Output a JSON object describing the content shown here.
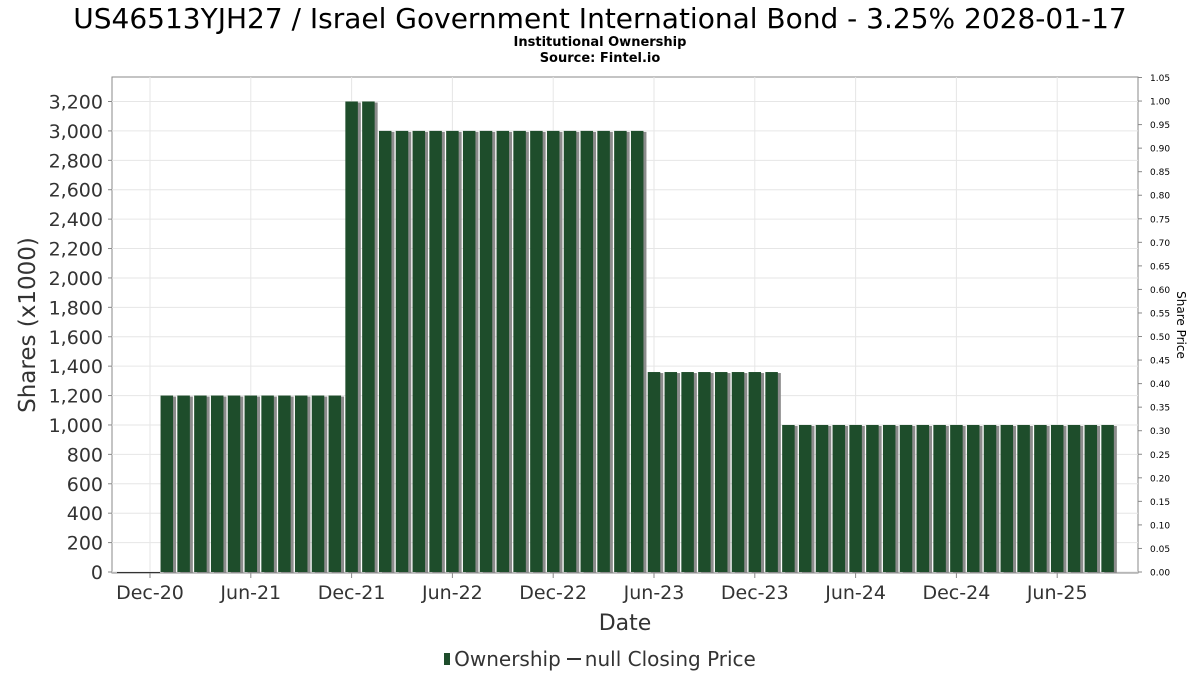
{
  "chart_data": {
    "type": "bar",
    "title": "US46513YJH27 / Israel Government International Bond - 3.25% 2028-01-17",
    "subtitle_lines": [
      "Institutional Ownership",
      "Source: Fintel.io"
    ],
    "xlabel": "Date",
    "ylabel": "Shares (x1000)",
    "y2label": "Share Price",
    "ylim": [
      0,
      3200
    ],
    "y_ticks": [
      0,
      200,
      400,
      600,
      800,
      1000,
      1200,
      1400,
      1600,
      1800,
      2000,
      2200,
      2400,
      2600,
      2800,
      3000,
      3200
    ],
    "y2lim": [
      0,
      1.05
    ],
    "y2_ticks": [
      "0.00",
      "0.05",
      "0.10",
      "0.15",
      "0.20",
      "0.25",
      "0.30",
      "0.35",
      "0.40",
      "0.45",
      "0.50",
      "0.55",
      "0.60",
      "0.65",
      "0.70",
      "0.75",
      "0.80",
      "0.85",
      "0.90",
      "0.95",
      "1.00",
      "1.05"
    ],
    "x_ticks": [
      "Dec-20",
      "Jun-21",
      "Dec-21",
      "Jun-22",
      "Dec-22",
      "Jun-23",
      "Dec-23",
      "Jun-24",
      "Dec-24",
      "Jun-25"
    ],
    "grid": true,
    "bar_color": "#1e4d2b",
    "shadow_color": "#8c8c8c",
    "series": [
      {
        "name": "Ownership",
        "points": [
          {
            "date": "2021-01",
            "value": 1200
          },
          {
            "date": "2021-02",
            "value": 1200
          },
          {
            "date": "2021-03",
            "value": 1200
          },
          {
            "date": "2021-04",
            "value": 1200
          },
          {
            "date": "2021-05",
            "value": 1200
          },
          {
            "date": "2021-06",
            "value": 1200
          },
          {
            "date": "2021-07",
            "value": 1200
          },
          {
            "date": "2021-08",
            "value": 1200
          },
          {
            "date": "2021-09",
            "value": 1200
          },
          {
            "date": "2021-10",
            "value": 1200
          },
          {
            "date": "2021-11",
            "value": 1200
          },
          {
            "date": "2021-12",
            "value": 3200
          },
          {
            "date": "2022-01",
            "value": 3200
          },
          {
            "date": "2022-02",
            "value": 3000
          },
          {
            "date": "2022-03",
            "value": 3000
          },
          {
            "date": "2022-04",
            "value": 3000
          },
          {
            "date": "2022-05",
            "value": 3000
          },
          {
            "date": "2022-06",
            "value": 3000
          },
          {
            "date": "2022-07",
            "value": 3000
          },
          {
            "date": "2022-08",
            "value": 3000
          },
          {
            "date": "2022-09",
            "value": 3000
          },
          {
            "date": "2022-10",
            "value": 3000
          },
          {
            "date": "2022-11",
            "value": 3000
          },
          {
            "date": "2022-12",
            "value": 3000
          },
          {
            "date": "2023-01",
            "value": 3000
          },
          {
            "date": "2023-02",
            "value": 3000
          },
          {
            "date": "2023-03",
            "value": 3000
          },
          {
            "date": "2023-04",
            "value": 3000
          },
          {
            "date": "2023-05",
            "value": 3000
          },
          {
            "date": "2023-06",
            "value": 1360
          },
          {
            "date": "2023-07",
            "value": 1360
          },
          {
            "date": "2023-08",
            "value": 1360
          },
          {
            "date": "2023-09",
            "value": 1360
          },
          {
            "date": "2023-10",
            "value": 1360
          },
          {
            "date": "2023-11",
            "value": 1360
          },
          {
            "date": "2023-12",
            "value": 1360
          },
          {
            "date": "2024-01",
            "value": 1360
          },
          {
            "date": "2024-02",
            "value": 1000
          },
          {
            "date": "2024-03",
            "value": 1000
          },
          {
            "date": "2024-04",
            "value": 1000
          },
          {
            "date": "2024-05",
            "value": 1000
          },
          {
            "date": "2024-06",
            "value": 1000
          },
          {
            "date": "2024-07",
            "value": 1000
          },
          {
            "date": "2024-08",
            "value": 1000
          },
          {
            "date": "2024-09",
            "value": 1000
          },
          {
            "date": "2024-10",
            "value": 1000
          },
          {
            "date": "2024-11",
            "value": 1000
          },
          {
            "date": "2024-12",
            "value": 1000
          },
          {
            "date": "2025-01",
            "value": 1000
          },
          {
            "date": "2025-02",
            "value": 1000
          },
          {
            "date": "2025-03",
            "value": 1000
          },
          {
            "date": "2025-04",
            "value": 1000
          },
          {
            "date": "2025-05",
            "value": 1000
          },
          {
            "date": "2025-06",
            "value": 1000
          },
          {
            "date": "2025-07",
            "value": 1000
          },
          {
            "date": "2025-08",
            "value": 1000
          },
          {
            "date": "2025-09",
            "value": 1000
          }
        ]
      }
    ],
    "legend": {
      "items": [
        "Ownership",
        "null Closing Price"
      ],
      "placement": "bottom"
    }
  }
}
